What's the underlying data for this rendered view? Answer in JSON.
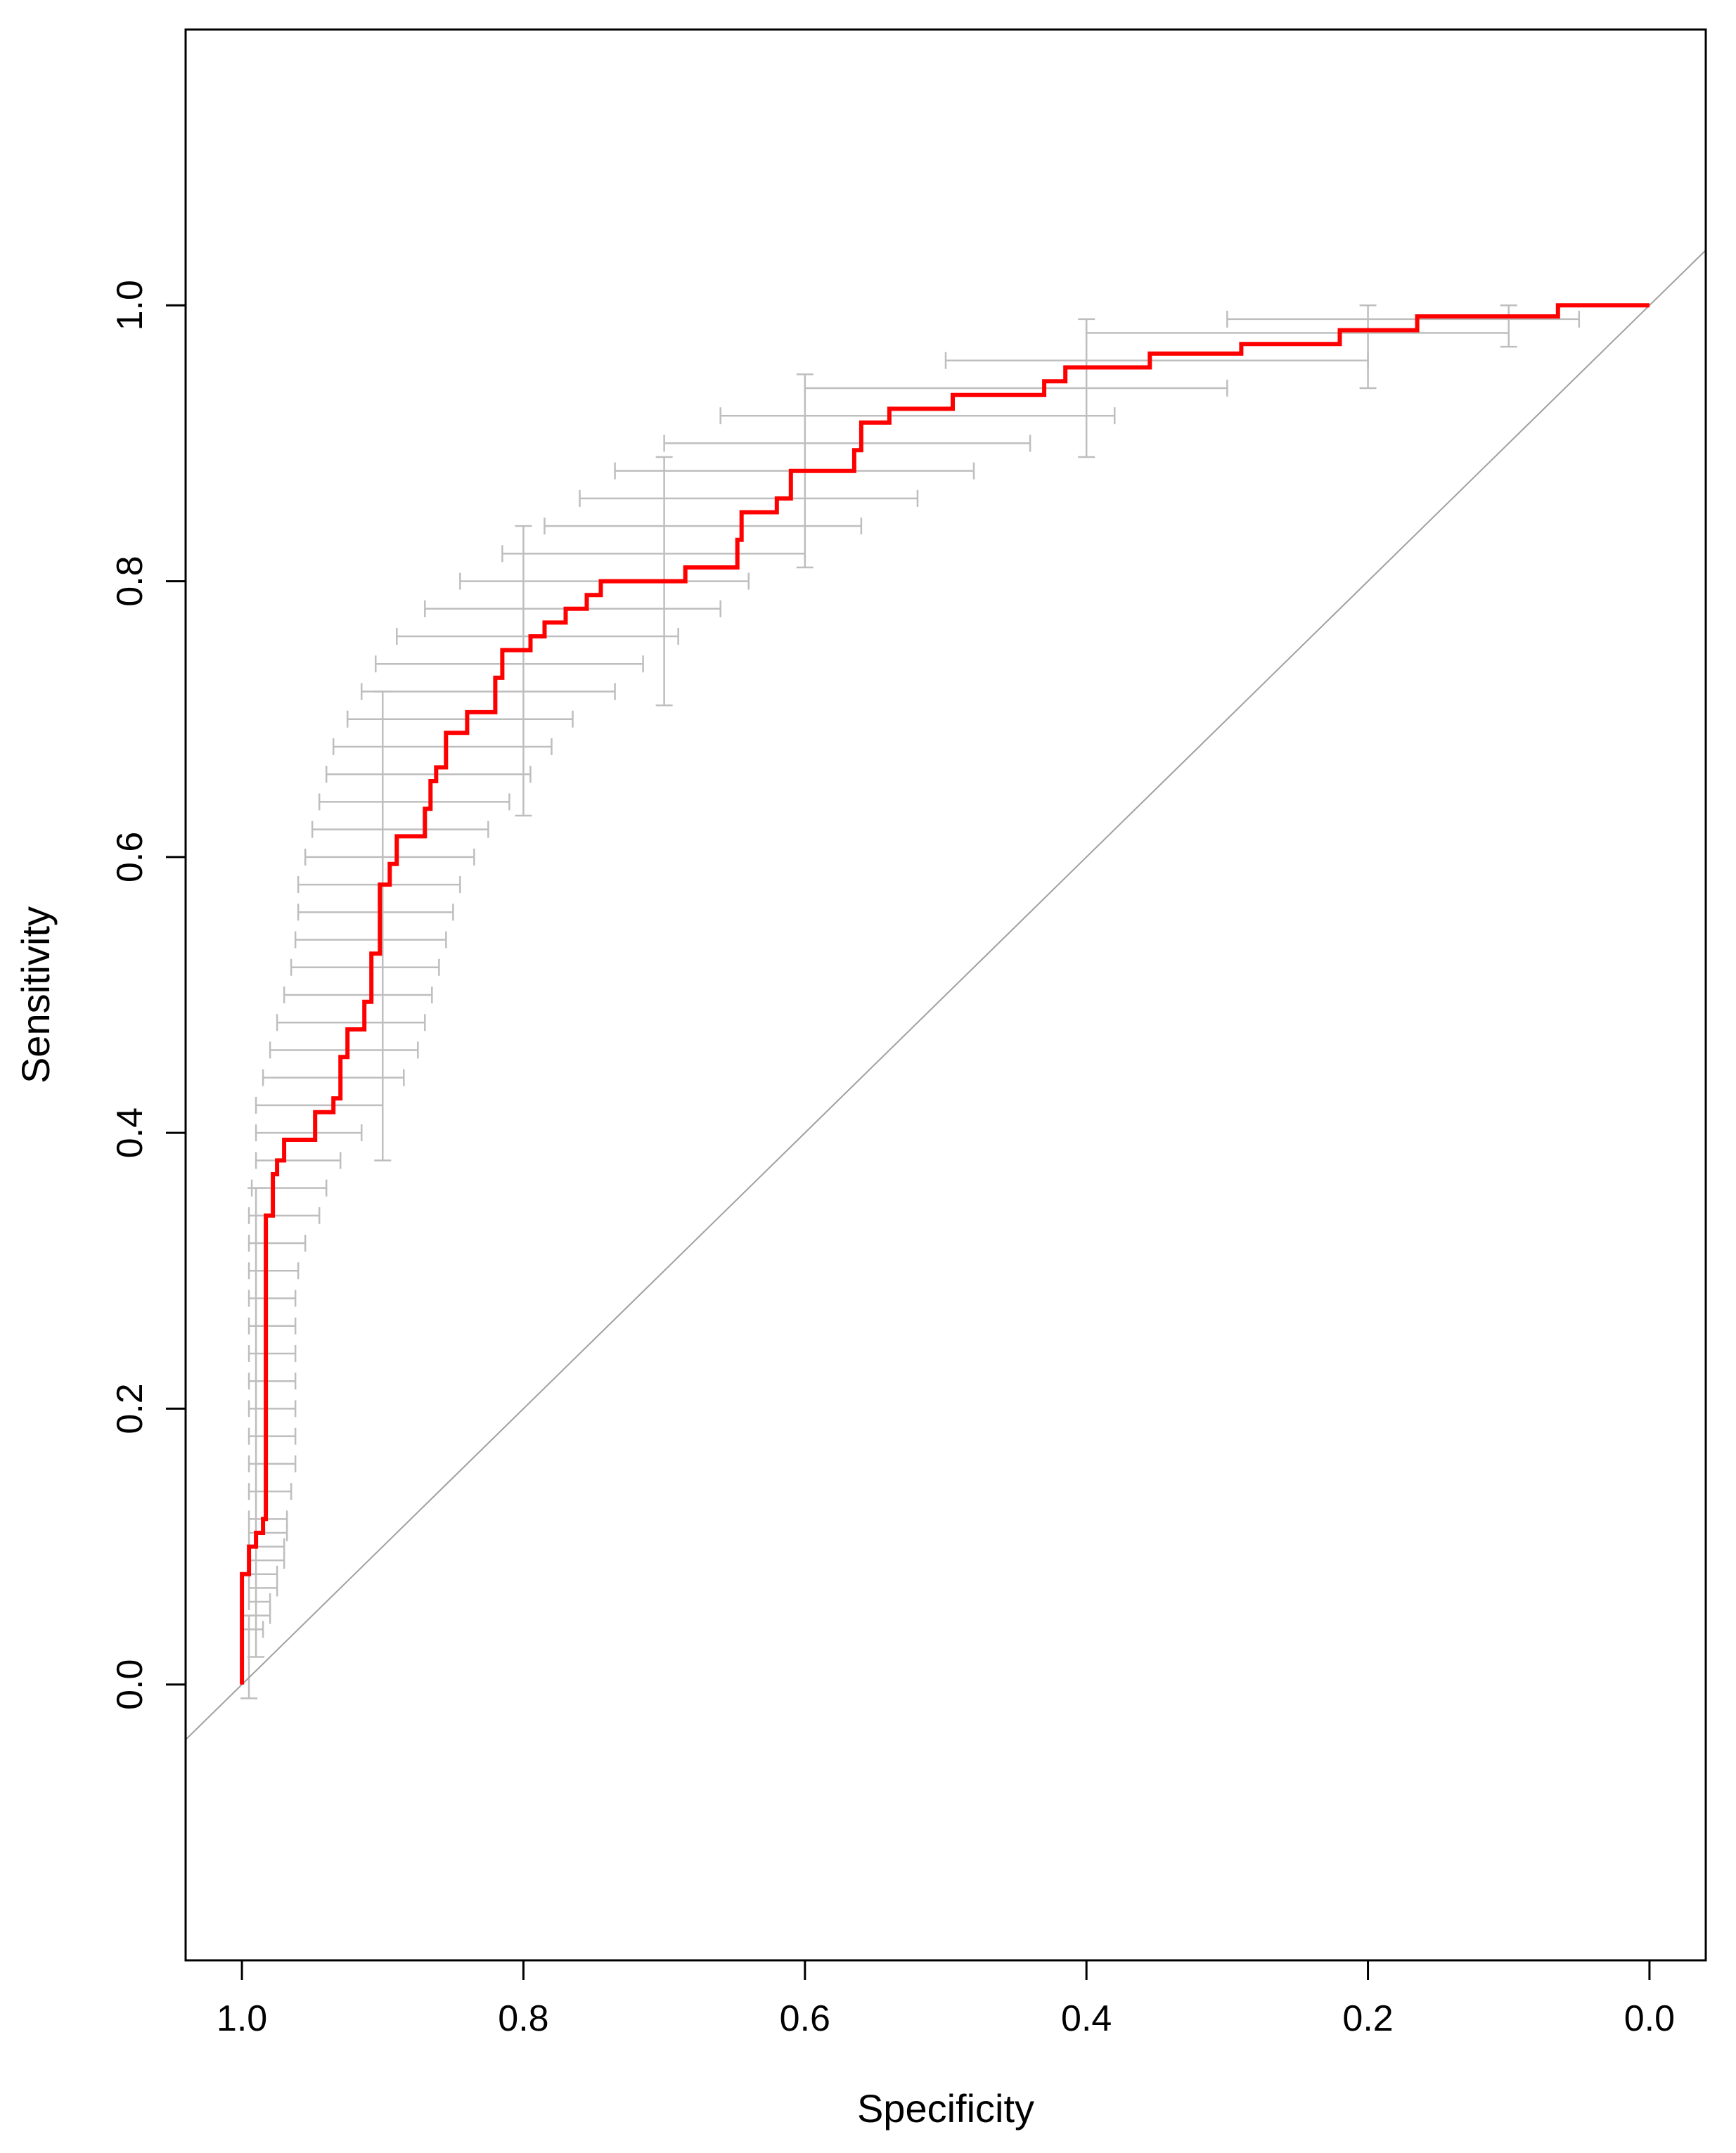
{
  "chart_data": {
    "type": "line",
    "title": "",
    "xlabel": "Specificity",
    "ylabel": "Sensitivity",
    "x_reversed": true,
    "xlim": [
      1.04,
      -0.04
    ],
    "ylim": [
      -0.2,
      1.2
    ],
    "x_ticks": [
      1.0,
      0.8,
      0.6,
      0.4,
      0.2,
      0.0
    ],
    "x_tick_labels": [
      "1.0",
      "0.8",
      "0.6",
      "0.4",
      "0.2",
      "0.0"
    ],
    "y_ticks": [
      0.0,
      0.2,
      0.4,
      0.6,
      0.8,
      1.0
    ],
    "y_tick_labels": [
      "0.0",
      "0.2",
      "0.4",
      "0.6",
      "0.8",
      "1.0"
    ],
    "grid": false,
    "reference_line": {
      "name": "chance diagonal",
      "from": [
        1.0,
        0.0
      ],
      "to": [
        0.0,
        1.0
      ],
      "color": "#a0a0a0"
    },
    "roc_curve": {
      "name": "ROC curve",
      "color": "#ff0000",
      "points": [
        [
          1.0,
          0.0
        ],
        [
          1.0,
          0.08
        ],
        [
          0.995,
          0.08
        ],
        [
          0.995,
          0.1
        ],
        [
          0.99,
          0.1
        ],
        [
          0.99,
          0.11
        ],
        [
          0.985,
          0.11
        ],
        [
          0.985,
          0.12
        ],
        [
          0.983,
          0.12
        ],
        [
          0.983,
          0.34
        ],
        [
          0.978,
          0.34
        ],
        [
          0.978,
          0.37
        ],
        [
          0.975,
          0.37
        ],
        [
          0.975,
          0.38
        ],
        [
          0.97,
          0.38
        ],
        [
          0.97,
          0.395
        ],
        [
          0.948,
          0.395
        ],
        [
          0.948,
          0.415
        ],
        [
          0.935,
          0.415
        ],
        [
          0.935,
          0.425
        ],
        [
          0.93,
          0.425
        ],
        [
          0.93,
          0.455
        ],
        [
          0.925,
          0.455
        ],
        [
          0.925,
          0.475
        ],
        [
          0.913,
          0.475
        ],
        [
          0.913,
          0.495
        ],
        [
          0.908,
          0.495
        ],
        [
          0.908,
          0.53
        ],
        [
          0.902,
          0.53
        ],
        [
          0.902,
          0.58
        ],
        [
          0.895,
          0.58
        ],
        [
          0.895,
          0.595
        ],
        [
          0.89,
          0.595
        ],
        [
          0.89,
          0.615
        ],
        [
          0.87,
          0.615
        ],
        [
          0.87,
          0.635
        ],
        [
          0.866,
          0.635
        ],
        [
          0.866,
          0.655
        ],
        [
          0.862,
          0.655
        ],
        [
          0.862,
          0.665
        ],
        [
          0.855,
          0.665
        ],
        [
          0.855,
          0.69
        ],
        [
          0.84,
          0.69
        ],
        [
          0.84,
          0.705
        ],
        [
          0.82,
          0.705
        ],
        [
          0.82,
          0.73
        ],
        [
          0.815,
          0.73
        ],
        [
          0.815,
          0.75
        ],
        [
          0.795,
          0.75
        ],
        [
          0.795,
          0.76
        ],
        [
          0.785,
          0.76
        ],
        [
          0.785,
          0.77
        ],
        [
          0.77,
          0.77
        ],
        [
          0.77,
          0.78
        ],
        [
          0.755,
          0.78
        ],
        [
          0.755,
          0.79
        ],
        [
          0.745,
          0.79
        ],
        [
          0.745,
          0.8
        ],
        [
          0.685,
          0.8
        ],
        [
          0.685,
          0.81
        ],
        [
          0.648,
          0.81
        ],
        [
          0.648,
          0.83
        ],
        [
          0.645,
          0.83
        ],
        [
          0.645,
          0.85
        ],
        [
          0.62,
          0.85
        ],
        [
          0.62,
          0.86
        ],
        [
          0.61,
          0.86
        ],
        [
          0.61,
          0.88
        ],
        [
          0.565,
          0.88
        ],
        [
          0.565,
          0.895
        ],
        [
          0.56,
          0.895
        ],
        [
          0.56,
          0.915
        ],
        [
          0.54,
          0.915
        ],
        [
          0.54,
          0.925
        ],
        [
          0.495,
          0.925
        ],
        [
          0.495,
          0.935
        ],
        [
          0.43,
          0.935
        ],
        [
          0.43,
          0.945
        ],
        [
          0.415,
          0.945
        ],
        [
          0.415,
          0.955
        ],
        [
          0.355,
          0.955
        ],
        [
          0.355,
          0.965
        ],
        [
          0.29,
          0.965
        ],
        [
          0.29,
          0.972
        ],
        [
          0.22,
          0.972
        ],
        [
          0.22,
          0.982
        ],
        [
          0.165,
          0.982
        ],
        [
          0.165,
          0.992
        ],
        [
          0.065,
          0.992
        ],
        [
          0.065,
          1.0
        ],
        [
          0.0,
          1.0
        ]
      ]
    },
    "confidence_intervals": {
      "name": "specificity CI bars",
      "color": "#bebebe",
      "bars": [
        [
          0.04,
          1.0,
          0.985
        ],
        [
          0.05,
          1.0,
          0.98
        ],
        [
          0.06,
          0.995,
          0.98
        ],
        [
          0.07,
          0.995,
          0.975
        ],
        [
          0.08,
          0.995,
          0.975
        ],
        [
          0.09,
          0.995,
          0.97
        ],
        [
          0.1,
          0.995,
          0.97
        ],
        [
          0.11,
          0.995,
          0.968
        ],
        [
          0.12,
          0.995,
          0.968
        ],
        [
          0.14,
          0.995,
          0.965
        ],
        [
          0.16,
          0.995,
          0.962
        ],
        [
          0.18,
          0.995,
          0.962
        ],
        [
          0.2,
          0.995,
          0.962
        ],
        [
          0.22,
          0.995,
          0.962
        ],
        [
          0.24,
          0.995,
          0.962
        ],
        [
          0.26,
          0.995,
          0.962
        ],
        [
          0.28,
          0.995,
          0.962
        ],
        [
          0.3,
          0.995,
          0.96
        ],
        [
          0.32,
          0.995,
          0.955
        ],
        [
          0.34,
          0.995,
          0.945
        ],
        [
          0.36,
          0.993,
          0.94
        ],
        [
          0.38,
          0.99,
          0.93
        ],
        [
          0.4,
          0.99,
          0.915
        ],
        [
          0.42,
          0.99,
          0.9
        ],
        [
          0.44,
          0.985,
          0.885
        ],
        [
          0.46,
          0.98,
          0.875
        ],
        [
          0.48,
          0.975,
          0.87
        ],
        [
          0.5,
          0.97,
          0.865
        ],
        [
          0.52,
          0.965,
          0.86
        ],
        [
          0.54,
          0.962,
          0.855
        ],
        [
          0.56,
          0.96,
          0.85
        ],
        [
          0.58,
          0.96,
          0.845
        ],
        [
          0.6,
          0.955,
          0.835
        ],
        [
          0.62,
          0.95,
          0.825
        ],
        [
          0.64,
          0.945,
          0.81
        ],
        [
          0.66,
          0.94,
          0.795
        ],
        [
          0.68,
          0.935,
          0.78
        ],
        [
          0.7,
          0.925,
          0.765
        ],
        [
          0.72,
          0.915,
          0.735
        ],
        [
          0.74,
          0.905,
          0.715
        ],
        [
          0.76,
          0.89,
          0.69
        ],
        [
          0.78,
          0.87,
          0.66
        ],
        [
          0.8,
          0.845,
          0.64
        ],
        [
          0.82,
          0.815,
          0.6
        ],
        [
          0.84,
          0.785,
          0.56
        ],
        [
          0.86,
          0.76,
          0.52
        ],
        [
          0.88,
          0.735,
          0.48
        ],
        [
          0.9,
          0.7,
          0.44
        ],
        [
          0.92,
          0.66,
          0.38
        ],
        [
          0.94,
          0.6,
          0.3
        ],
        [
          0.96,
          0.5,
          0.2
        ],
        [
          0.98,
          0.4,
          0.1
        ],
        [
          0.99,
          0.3,
          0.05
        ]
      ]
    },
    "sensitivity_ci_bars": {
      "name": "sensitivity CI bars",
      "color": "#bebebe",
      "bars": [
        [
          0.995,
          0.05,
          -0.01
        ],
        [
          0.99,
          0.36,
          0.02
        ],
        [
          0.9,
          0.72,
          0.38
        ],
        [
          0.8,
          0.84,
          0.63
        ],
        [
          0.7,
          0.89,
          0.71
        ],
        [
          0.6,
          0.95,
          0.81
        ],
        [
          0.4,
          0.99,
          0.89
        ],
        [
          0.2,
          1.0,
          0.94
        ],
        [
          0.1,
          1.0,
          0.97
        ]
      ]
    }
  }
}
